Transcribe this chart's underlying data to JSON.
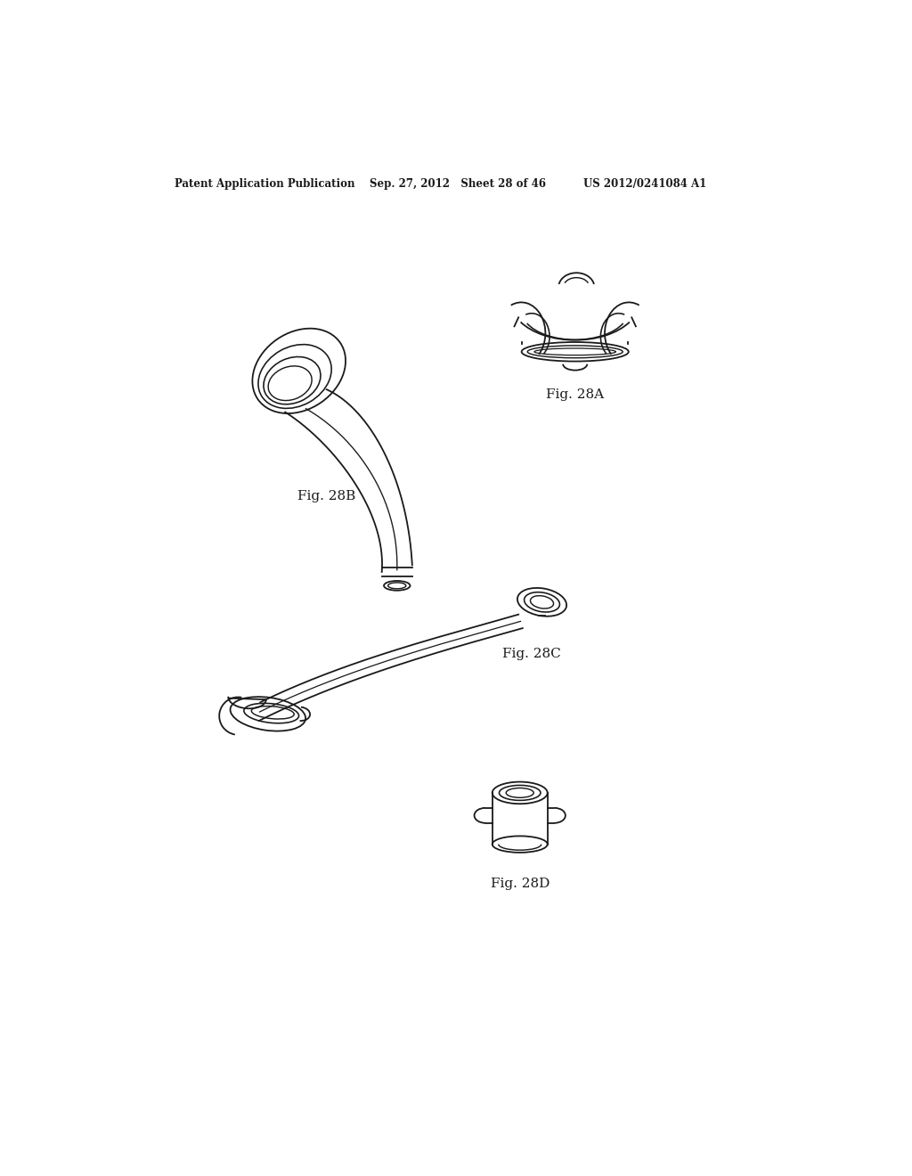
{
  "title": "Patent Application Publication",
  "date": "Sep. 27, 2012",
  "sheet": "Sheet 28 of 46",
  "patent": "US 2012/0241084 A1",
  "fig_labels": [
    "Fig. 28A",
    "Fig. 28B",
    "Fig. 28C",
    "Fig. 28D"
  ],
  "background": "#ffffff",
  "line_color": "#1a1a1a",
  "line_width": 1.3,
  "fig_width": 10.24,
  "fig_height": 13.2
}
